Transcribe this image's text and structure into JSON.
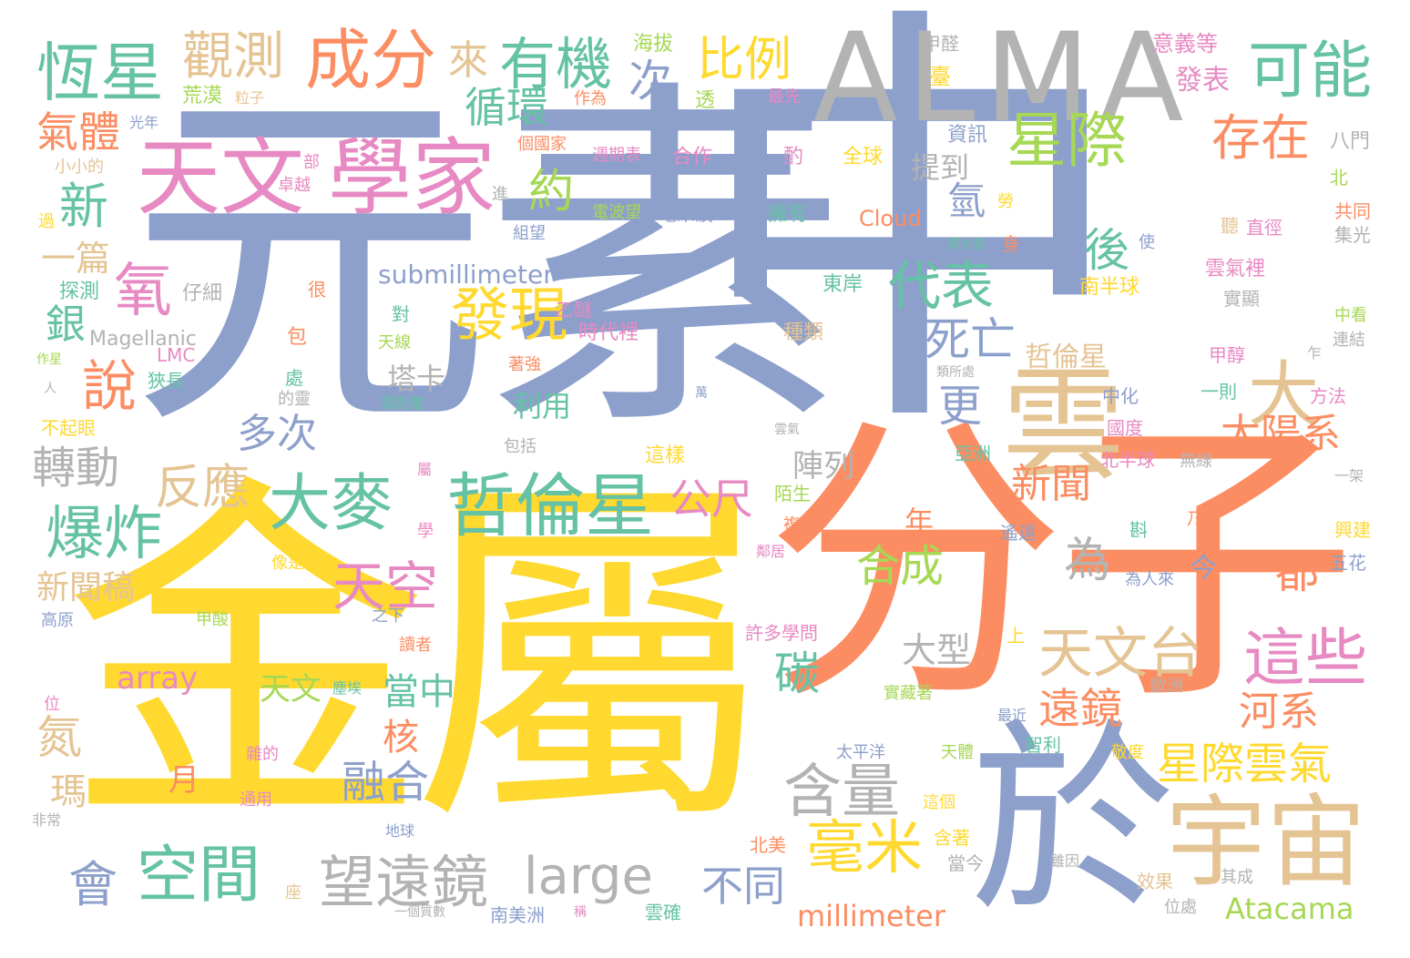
{
  "palette": {
    "blue": "#8da0cb",
    "yellow": "#ffd92f",
    "orange": "#fc8d62",
    "gray": "#b3b3b3",
    "green": "#66c2a5",
    "pink": "#e78ac3",
    "lime": "#a6d854",
    "tan": "#e5c494"
  },
  "words": [
    {
      "text": "元素",
      "color": "blue"
    },
    {
      "text": "中",
      "color": "blue"
    },
    {
      "text": "金屬",
      "color": "yellow"
    },
    {
      "text": "分子",
      "color": "orange"
    },
    {
      "text": "ALMA",
      "color": "gray"
    },
    {
      "text": "於",
      "color": "blue"
    },
    {
      "text": "雲",
      "color": "tan"
    },
    {
      "text": "宇宙",
      "color": "tan"
    },
    {
      "text": "天文",
      "color": "pink"
    },
    {
      "text": "學家",
      "color": "pink"
    },
    {
      "text": "恆星",
      "color": "green"
    },
    {
      "text": "觀測",
      "color": "tan"
    },
    {
      "text": "成分",
      "color": "orange"
    },
    {
      "text": "來",
      "color": "tan"
    },
    {
      "text": "有機",
      "color": "green"
    },
    {
      "text": "比例",
      "color": "yellow"
    },
    {
      "text": "可能",
      "color": "green"
    },
    {
      "text": "次",
      "color": "blue"
    },
    {
      "text": "星際",
      "color": "lime"
    },
    {
      "text": "循環",
      "color": "green"
    },
    {
      "text": "存在",
      "color": "orange"
    },
    {
      "text": "氣體",
      "color": "orange"
    },
    {
      "text": "新",
      "color": "green"
    },
    {
      "text": "約",
      "color": "lime"
    },
    {
      "text": "提到",
      "color": "gray"
    },
    {
      "text": "氫",
      "color": "blue"
    },
    {
      "text": "後",
      "color": "green"
    },
    {
      "text": "一篇",
      "color": "tan"
    },
    {
      "text": "氧",
      "color": "pink"
    },
    {
      "text": "submillimeter",
      "color": "blue"
    },
    {
      "text": "代表",
      "color": "green"
    },
    {
      "text": "發現",
      "color": "yellow"
    },
    {
      "text": "銀",
      "color": "green"
    },
    {
      "text": "死亡",
      "color": "blue"
    },
    {
      "text": "大",
      "color": "tan"
    },
    {
      "text": "說",
      "color": "orange"
    },
    {
      "text": "塔卡",
      "color": "gray"
    },
    {
      "text": "哲倫星",
      "color": "tan"
    },
    {
      "text": "利用",
      "color": "green"
    },
    {
      "text": "更",
      "color": "blue"
    },
    {
      "text": "多次",
      "color": "blue"
    },
    {
      "text": "太陽系",
      "color": "orange"
    },
    {
      "text": "轉動",
      "color": "gray"
    },
    {
      "text": "陣列",
      "color": "gray"
    },
    {
      "text": "反應",
      "color": "tan"
    },
    {
      "text": "大麥",
      "color": "green"
    },
    {
      "text": "哲倫星",
      "color": "green"
    },
    {
      "text": "公尺",
      "color": "pink"
    },
    {
      "text": "新聞",
      "color": "orange"
    },
    {
      "text": "爆炸",
      "color": "green"
    },
    {
      "text": "為",
      "color": "gray"
    },
    {
      "text": "天空",
      "color": "pink"
    },
    {
      "text": "合成",
      "color": "lime"
    },
    {
      "text": "年",
      "color": "orange"
    },
    {
      "text": "今",
      "color": "blue"
    },
    {
      "text": "都",
      "color": "orange"
    },
    {
      "text": "新聞稿",
      "color": "tan"
    },
    {
      "text": "天文台",
      "color": "tan"
    },
    {
      "text": "這些",
      "color": "pink"
    },
    {
      "text": "大型",
      "color": "gray"
    },
    {
      "text": "碳",
      "color": "green"
    },
    {
      "text": "array",
      "color": "pink"
    },
    {
      "text": "天文",
      "color": "lime"
    },
    {
      "text": "當中",
      "color": "green"
    },
    {
      "text": "遠鏡",
      "color": "orange"
    },
    {
      "text": "河系",
      "color": "orange"
    },
    {
      "text": "氮",
      "color": "tan"
    },
    {
      "text": "核",
      "color": "orange"
    },
    {
      "text": "融合",
      "color": "blue"
    },
    {
      "text": "星際雲氣",
      "color": "yellow"
    },
    {
      "text": "月",
      "color": "orange"
    },
    {
      "text": "瑪",
      "color": "tan"
    },
    {
      "text": "含量",
      "color": "gray"
    },
    {
      "text": "毫米",
      "color": "yellow"
    },
    {
      "text": "空間",
      "color": "green"
    },
    {
      "text": "望遠鏡",
      "color": "gray"
    },
    {
      "text": "large",
      "color": "gray"
    },
    {
      "text": "不同",
      "color": "blue"
    },
    {
      "text": "會",
      "color": "blue"
    },
    {
      "text": "millimeter",
      "color": "orange"
    },
    {
      "text": "Atacama",
      "color": "lime"
    },
    {
      "text": "海拔",
      "color": "lime"
    },
    {
      "text": "甲醛",
      "color": "gray"
    },
    {
      "text": "意義等",
      "color": "pink"
    },
    {
      "text": "臺",
      "color": "yellow"
    },
    {
      "text": "發表",
      "color": "pink"
    },
    {
      "text": "荒漠",
      "color": "lime"
    },
    {
      "text": "粒子",
      "color": "tan"
    },
    {
      "text": "光年",
      "color": "blue"
    },
    {
      "text": "作為",
      "color": "orange"
    },
    {
      "text": "透",
      "color": "lime"
    },
    {
      "text": "最先",
      "color": "pink"
    },
    {
      "text": "資訊",
      "color": "blue"
    },
    {
      "text": "八門",
      "color": "gray"
    },
    {
      "text": "小小的",
      "color": "tan"
    },
    {
      "text": "個國家",
      "color": "orange"
    },
    {
      "text": "週期表",
      "color": "pink"
    },
    {
      "text": "合作",
      "color": "pink"
    },
    {
      "text": "酌",
      "color": "pink"
    },
    {
      "text": "全球",
      "color": "yellow"
    },
    {
      "text": "部",
      "color": "pink"
    },
    {
      "text": "卓越",
      "color": "pink"
    },
    {
      "text": "北",
      "color": "lime"
    },
    {
      "text": "進",
      "color": "gray"
    },
    {
      "text": "過",
      "color": "yellow"
    },
    {
      "text": "電波望",
      "color": "lime"
    },
    {
      "text": "毫米波",
      "color": "blue"
    },
    {
      "text": "擁有",
      "color": "green"
    },
    {
      "text": "Cloud",
      "color": "orange"
    },
    {
      "text": "共同",
      "color": "orange"
    },
    {
      "text": "組望",
      "color": "blue"
    },
    {
      "text": "勞",
      "color": "yellow"
    },
    {
      "text": "聽",
      "color": "tan"
    },
    {
      "text": "直徑",
      "color": "pink"
    },
    {
      "text": "集光",
      "color": "gray"
    },
    {
      "text": "身",
      "color": "orange"
    },
    {
      "text": "賈大麥",
      "color": "green"
    },
    {
      "text": "使",
      "color": "blue"
    },
    {
      "text": "探測",
      "color": "green"
    },
    {
      "text": "仔細",
      "color": "gray"
    },
    {
      "text": "很",
      "color": "orange"
    },
    {
      "text": "東岸",
      "color": "green"
    },
    {
      "text": "雲氣裡",
      "color": "pink"
    },
    {
      "text": "南半球",
      "color": "yellow"
    },
    {
      "text": "實顯",
      "color": "gray"
    },
    {
      "text": "對",
      "color": "green"
    },
    {
      "text": "乙醚",
      "color": "pink"
    },
    {
      "text": "Magellanic",
      "color": "gray"
    },
    {
      "text": "包",
      "color": "orange"
    },
    {
      "text": "天線",
      "color": "lime"
    },
    {
      "text": "時代裡",
      "color": "pink"
    },
    {
      "text": "種類",
      "color": "tan"
    },
    {
      "text": "中看",
      "color": "lime"
    },
    {
      "text": "LMC",
      "color": "pink"
    },
    {
      "text": "作星",
      "color": "lime"
    },
    {
      "text": "狹長",
      "color": "green"
    },
    {
      "text": "處",
      "color": "green"
    },
    {
      "text": "甲醇",
      "color": "pink"
    },
    {
      "text": "乍",
      "color": "gray"
    },
    {
      "text": "連結",
      "color": "gray"
    },
    {
      "text": "人",
      "color": "gray"
    },
    {
      "text": "的靈",
      "color": "gray"
    },
    {
      "text": "著強",
      "color": "orange"
    },
    {
      "text": "萬",
      "color": "blue"
    },
    {
      "text": "類所處",
      "color": "gray"
    },
    {
      "text": "中化",
      "color": "blue"
    },
    {
      "text": "一則",
      "color": "green"
    },
    {
      "text": "方法",
      "color": "pink"
    },
    {
      "text": "不起眼",
      "color": "yellow"
    },
    {
      "text": "雲距離",
      "color": "green"
    },
    {
      "text": "雲氣",
      "color": "gray"
    },
    {
      "text": "國度",
      "color": "pink"
    },
    {
      "text": "包括",
      "color": "gray"
    },
    {
      "text": "亞洲",
      "color": "green"
    },
    {
      "text": "這樣",
      "color": "yellow"
    },
    {
      "text": "北半球",
      "color": "pink"
    },
    {
      "text": "無線",
      "color": "gray"
    },
    {
      "text": "一架",
      "color": "gray"
    },
    {
      "text": "屬",
      "color": "pink"
    },
    {
      "text": "陌生",
      "color": "lime"
    },
    {
      "text": "乃是",
      "color": "orange"
    },
    {
      "text": "學",
      "color": "pink"
    },
    {
      "text": "複",
      "color": "orange"
    },
    {
      "text": "遙遠",
      "color": "blue"
    },
    {
      "text": "斟",
      "color": "green"
    },
    {
      "text": "興建",
      "color": "yellow"
    },
    {
      "text": "鄰居",
      "color": "pink"
    },
    {
      "text": "像是",
      "color": "yellow"
    },
    {
      "text": "為人來",
      "color": "blue"
    },
    {
      "text": "五花",
      "color": "blue"
    },
    {
      "text": "高原",
      "color": "blue"
    },
    {
      "text": "甲酸",
      "color": "lime"
    },
    {
      "text": "之下",
      "color": "blue"
    },
    {
      "text": "許多學問",
      "color": "pink"
    },
    {
      "text": "上",
      "color": "yellow"
    },
    {
      "text": "讀者",
      "color": "orange"
    },
    {
      "text": "位",
      "color": "pink"
    },
    {
      "text": "塵埃",
      "color": "green"
    },
    {
      "text": "實藏著",
      "color": "lime"
    },
    {
      "text": "歐洲",
      "color": "gray"
    },
    {
      "text": "最近",
      "color": "blue"
    },
    {
      "text": "雜的",
      "color": "pink"
    },
    {
      "text": "太平洋",
      "color": "blue"
    },
    {
      "text": "天體",
      "color": "lime"
    },
    {
      "text": "智利",
      "color": "green"
    },
    {
      "text": "敬度",
      "color": "yellow"
    },
    {
      "text": "通用",
      "color": "pink"
    },
    {
      "text": "這個",
      "color": "yellow"
    },
    {
      "text": "非常",
      "color": "gray"
    },
    {
      "text": "地球",
      "color": "blue"
    },
    {
      "text": "北美",
      "color": "orange"
    },
    {
      "text": "含著",
      "color": "yellow"
    },
    {
      "text": "當今",
      "color": "gray"
    },
    {
      "text": "雖因",
      "color": "gray"
    },
    {
      "text": "效果",
      "color": "tan"
    },
    {
      "text": "其成",
      "color": "gray"
    },
    {
      "text": "座",
      "color": "tan"
    },
    {
      "text": "一個質數",
      "color": "gray"
    },
    {
      "text": "南美洲",
      "color": "blue"
    },
    {
      "text": "稱",
      "color": "pink"
    },
    {
      "text": "雲確",
      "color": "green"
    },
    {
      "text": "位處",
      "color": "gray"
    }
  ]
}
